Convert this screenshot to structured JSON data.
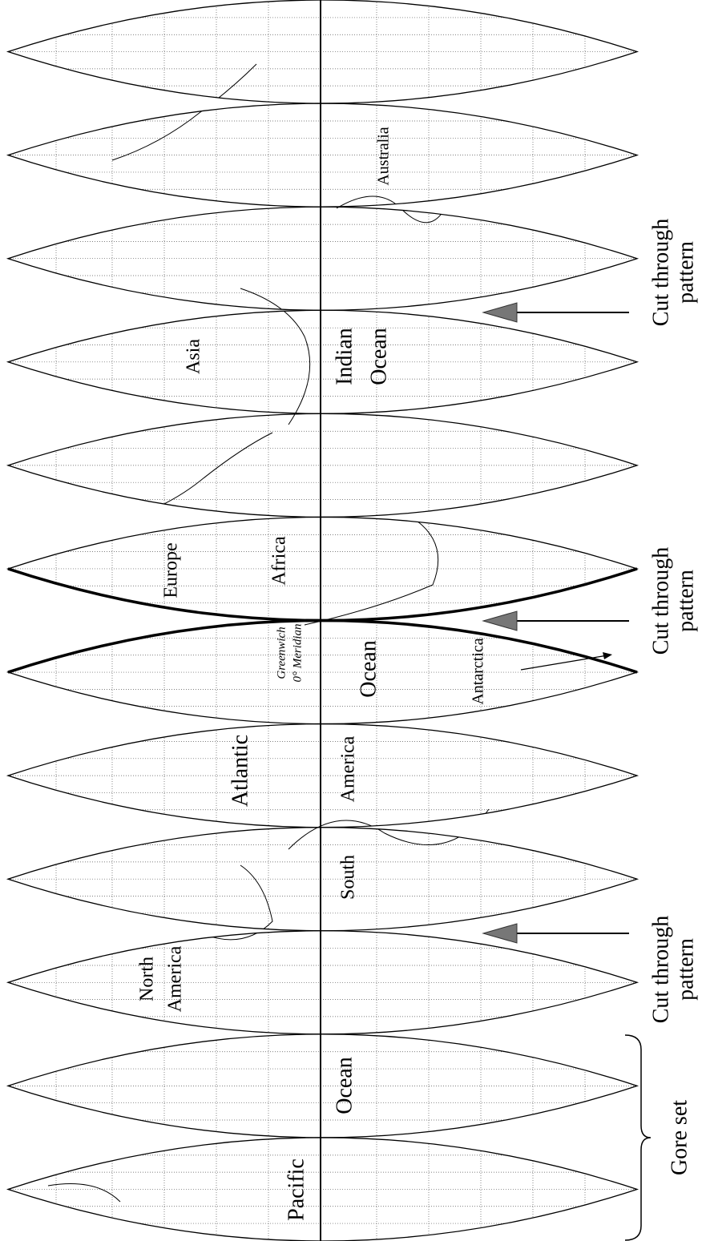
{
  "labels": {
    "pacific": "Pacific",
    "ocean_pacific": "Ocean",
    "north": "North",
    "america_north": "America",
    "south": "South",
    "america_south": "America",
    "atlantic": "Atlantic",
    "ocean_atlantic": "Ocean",
    "antarctica": "Antarctica",
    "greenwich": "Greenwich",
    "meridian": "0° Meridian",
    "europe": "Europe",
    "africa": "Africa",
    "asia": "Asia",
    "indian": "Indian",
    "ocean_indian": "Ocean",
    "australia": "Australia",
    "gore_set": "Gore set"
  },
  "cuts": [
    {
      "line1": "Cut through",
      "line2": "pattern"
    },
    {
      "line1": "Cut through",
      "line2": "pattern"
    },
    {
      "line1": "Cut through",
      "line2": "pattern"
    }
  ]
}
